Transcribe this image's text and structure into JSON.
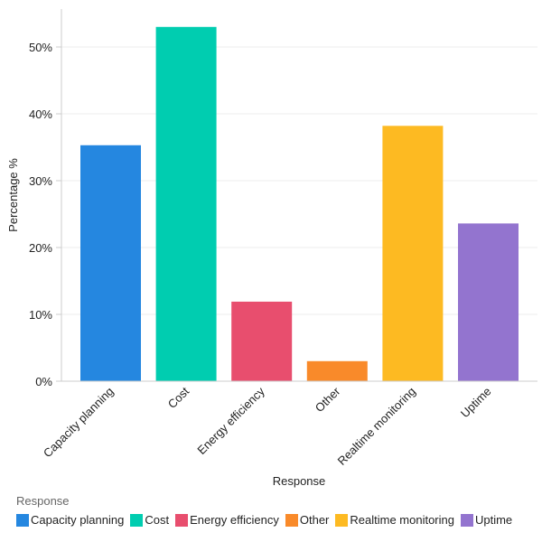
{
  "chart_data": {
    "type": "bar",
    "categories": [
      "Capacity planning",
      "Cost",
      "Energy efficiency",
      "Other",
      "Realtime monitoring",
      "Uptime"
    ],
    "values": [
      35.3,
      53.0,
      11.9,
      3.0,
      38.2,
      23.6
    ],
    "colors": [
      "#2587e0",
      "#00cdb0",
      "#e84e6e",
      "#f98a2a",
      "#fdba22",
      "#9374cf"
    ],
    "xlabel": "Response",
    "ylabel": "Percentage %",
    "ylim": [
      0,
      55
    ],
    "yticks": [
      "0%",
      "10%",
      "20%",
      "30%",
      "40%",
      "50%"
    ],
    "grid": true,
    "legend": {
      "title": "Response",
      "placement": "bottom-left"
    }
  }
}
